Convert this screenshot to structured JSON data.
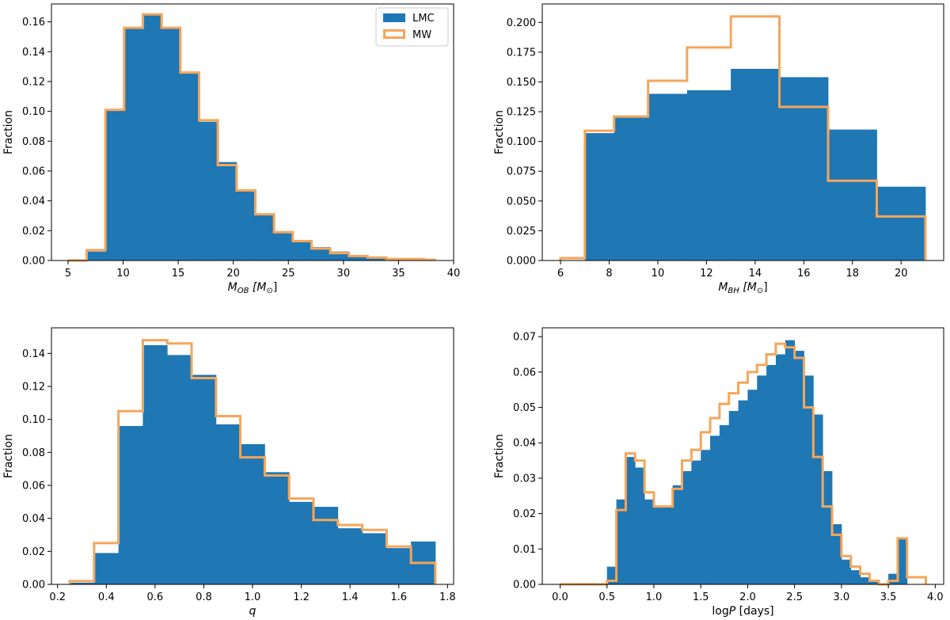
{
  "colors": {
    "lmc": "#1f77b4",
    "mw": "#f5a65b",
    "axis": "#000000"
  },
  "legend": {
    "entries": [
      "LMC",
      "MW"
    ],
    "location": "top-right of first panel"
  },
  "chart_data": [
    {
      "type": "histogram",
      "panel": "top-left",
      "xlabel": "M_OB [M_⊙]",
      "xlabel_main": "M",
      "xlabel_sub": "OB",
      "xlabel_unit": " [M",
      "xlabel_unit_sub": "⊙",
      "xlabel_close": "]",
      "ylabel": "Fraction",
      "xlim": [
        3.5,
        40
      ],
      "ylim": [
        0,
        0.172
      ],
      "xticks": [
        5,
        10,
        15,
        20,
        25,
        30,
        35,
        40
      ],
      "xtick_labels": [
        "5",
        "10",
        "15",
        "20",
        "25",
        "30",
        "35",
        "40"
      ],
      "yticks": [
        0,
        0.02,
        0.04,
        0.06,
        0.08,
        0.1,
        0.12,
        0.14,
        0.16
      ],
      "ytick_labels": [
        "0.00",
        "0.02",
        "0.04",
        "0.06",
        "0.08",
        "0.10",
        "0.12",
        "0.14",
        "0.16"
      ],
      "bin_edges": [
        5.0,
        6.7,
        8.4,
        10.1,
        11.8,
        13.5,
        15.2,
        16.9,
        18.6,
        20.3,
        22.0,
        23.7,
        25.4,
        27.1,
        28.8,
        30.5,
        32.2,
        33.9,
        35.6,
        37.3,
        38.3
      ],
      "series": [
        {
          "name": "LMC",
          "style": "filled",
          "values": [
            0.0,
            0.006,
            0.101,
            0.156,
            0.165,
            0.156,
            0.126,
            0.093,
            0.066,
            0.047,
            0.031,
            0.019,
            0.013,
            0.009,
            0.006,
            0.003,
            0.002,
            0.001,
            0.001,
            0.0005
          ]
        },
        {
          "name": "MW",
          "style": "step",
          "values": [
            0.0,
            0.007,
            0.101,
            0.156,
            0.165,
            0.156,
            0.126,
            0.094,
            0.064,
            0.047,
            0.031,
            0.019,
            0.013,
            0.008,
            0.005,
            0.003,
            0.002,
            0.001,
            0.001,
            0.0005
          ]
        }
      ]
    },
    {
      "type": "histogram",
      "panel": "top-right",
      "xlabel": "M_BH [M_⊙]",
      "xlabel_main": "M",
      "xlabel_sub": "BH",
      "xlabel_unit": " [M",
      "xlabel_unit_sub": "⊙",
      "xlabel_close": "]",
      "ylabel": "Fraction",
      "xlim": [
        5.25,
        21.75
      ],
      "ylim": [
        0,
        0.2155
      ],
      "xticks": [
        6,
        8,
        10,
        12,
        14,
        16,
        18,
        20
      ],
      "xtick_labels": [
        "6",
        "8",
        "10",
        "12",
        "14",
        "16",
        "18",
        "20"
      ],
      "yticks": [
        0,
        0.025,
        0.05,
        0.075,
        0.1,
        0.125,
        0.15,
        0.175,
        0.2
      ],
      "ytick_labels": [
        "0.000",
        "0.025",
        "0.050",
        "0.075",
        "0.100",
        "0.125",
        "0.150",
        "0.175",
        "0.200"
      ],
      "series": [
        {
          "name": "LMC",
          "style": "filled",
          "bin_edges": [
            7,
            8.2,
            9.6,
            11.2,
            13,
            15,
            17,
            19,
            21
          ],
          "values": [
            0.107,
            0.12,
            0.14,
            0.143,
            0.161,
            0.154,
            0.11,
            0.062
          ]
        },
        {
          "name": "MW",
          "style": "step",
          "bin_edges": [
            6,
            7,
            8.2,
            9.6,
            11.2,
            13,
            15,
            17,
            19,
            21
          ],
          "values": [
            0.002,
            0.109,
            0.121,
            0.151,
            0.179,
            0.205,
            0.129,
            0.067,
            0.037
          ]
        }
      ]
    },
    {
      "type": "histogram",
      "panel": "bottom-left",
      "xlabel": "q",
      "xlabel_main": "q",
      "xlabel_sub": "",
      "xlabel_unit": "",
      "xlabel_unit_sub": "",
      "xlabel_close": "",
      "ylabel": "Fraction",
      "xlim": [
        0.175,
        1.825
      ],
      "ylim": [
        0,
        0.1555
      ],
      "xticks": [
        0.2,
        0.4,
        0.6,
        0.8,
        1.0,
        1.2,
        1.4,
        1.6,
        1.8
      ],
      "xtick_labels": [
        "0.2",
        "0.4",
        "0.6",
        "0.8",
        "1.0",
        "1.2",
        "1.4",
        "1.6",
        "1.8"
      ],
      "yticks": [
        0,
        0.02,
        0.04,
        0.06,
        0.08,
        0.1,
        0.12,
        0.14
      ],
      "ytick_labels": [
        "0.00",
        "0.02",
        "0.04",
        "0.06",
        "0.08",
        "0.10",
        "0.12",
        "0.14"
      ],
      "bin_edges": [
        0.25,
        0.35,
        0.45,
        0.55,
        0.65,
        0.75,
        0.85,
        0.95,
        1.05,
        1.15,
        1.25,
        1.35,
        1.45,
        1.55,
        1.65,
        1.75
      ],
      "series": [
        {
          "name": "LMC",
          "style": "filled",
          "values": [
            0.001,
            0.019,
            0.096,
            0.145,
            0.139,
            0.127,
            0.097,
            0.085,
            0.068,
            0.05,
            0.047,
            0.034,
            0.031,
            0.022,
            0.026
          ]
        },
        {
          "name": "MW",
          "style": "step",
          "values": [
            0.002,
            0.025,
            0.105,
            0.148,
            0.146,
            0.125,
            0.102,
            0.077,
            0.066,
            0.052,
            0.039,
            0.036,
            0.033,
            0.023,
            0.013
          ]
        }
      ]
    },
    {
      "type": "histogram",
      "panel": "bottom-right",
      "xlabel": "log P [days]",
      "xlabel_main": "log",
      "xlabel_sub": "",
      "xlabel_unit": "P",
      "xlabel_unit_sub": "",
      "xlabel_close": " [days]",
      "ylabel": "Fraction",
      "xlim": [
        -0.19,
        4.09
      ],
      "ylim": [
        0,
        0.0725
      ],
      "xticks": [
        0.0,
        0.5,
        1.0,
        1.5,
        2.0,
        2.5,
        3.0,
        3.5,
        4.0
      ],
      "xtick_labels": [
        "0.0",
        "0.5",
        "1.0",
        "1.5",
        "2.0",
        "2.5",
        "3.0",
        "3.5",
        "4.0"
      ],
      "yticks": [
        0,
        0.01,
        0.02,
        0.03,
        0.04,
        0.05,
        0.06,
        0.07
      ],
      "ytick_labels": [
        "0.00",
        "0.01",
        "0.02",
        "0.03",
        "0.04",
        "0.05",
        "0.06",
        "0.07"
      ],
      "bin_edges": [
        0.0,
        0.5,
        0.6,
        0.7,
        0.8,
        0.9,
        1.0,
        1.1,
        1.2,
        1.3,
        1.4,
        1.5,
        1.6,
        1.7,
        1.8,
        1.9,
        2.0,
        2.1,
        2.2,
        2.3,
        2.4,
        2.5,
        2.6,
        2.7,
        2.8,
        2.9,
        3.0,
        3.1,
        3.2,
        3.3,
        3.4,
        3.5,
        3.6,
        3.7,
        3.9
      ],
      "series": [
        {
          "name": "LMC",
          "style": "filled",
          "values": [
            0.0,
            0.005,
            0.024,
            0.036,
            0.033,
            0.024,
            0.022,
            0.022,
            0.028,
            0.032,
            0.035,
            0.038,
            0.042,
            0.045,
            0.049,
            0.052,
            0.055,
            0.059,
            0.062,
            0.065,
            0.069,
            0.066,
            0.059,
            0.048,
            0.032,
            0.017,
            0.007,
            0.004,
            0.002,
            0.001,
            0.0,
            0.003,
            0.013,
            0.0
          ]
        },
        {
          "name": "MW",
          "style": "step",
          "values": [
            0.0,
            0.001,
            0.021,
            0.037,
            0.035,
            0.026,
            0.022,
            0.022,
            0.027,
            0.035,
            0.038,
            0.043,
            0.047,
            0.051,
            0.054,
            0.057,
            0.06,
            0.062,
            0.065,
            0.068,
            0.067,
            0.064,
            0.05,
            0.036,
            0.022,
            0.014,
            0.008,
            0.005,
            0.003,
            0.001,
            0.0,
            0.001,
            0.013,
            0.002
          ]
        }
      ]
    }
  ]
}
